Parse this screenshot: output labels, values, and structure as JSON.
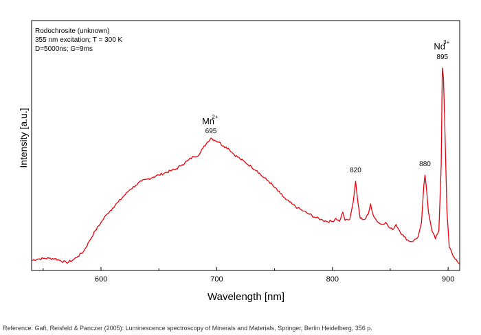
{
  "chart_data": {
    "type": "line",
    "title": "",
    "xlabel": "Wavelength [nm]",
    "ylabel": "Intensity [a.u.]",
    "xlim": [
      540,
      910
    ],
    "ylim": [
      0,
      100
    ],
    "x_ticks": [
      600,
      700,
      800,
      900
    ],
    "y_ticks_shown": false,
    "grid": false,
    "line_color": "#e8000a",
    "info_box": {
      "line1": "Rodochrosite (unknown)",
      "line2": "355 nm excitation; T = 300 K",
      "line3": "D=5000ns; G=9ms"
    },
    "ion_labels": [
      {
        "ion": "Mn",
        "charge": "2+",
        "x": 695
      },
      {
        "ion": "Nd",
        "charge": "3+",
        "x": 895
      }
    ],
    "peak_labels": [
      {
        "text": "695",
        "x": 695,
        "y": 62
      },
      {
        "text": "820",
        "x": 820,
        "y": 43
      },
      {
        "text": "880",
        "x": 880,
        "y": 46
      },
      {
        "text": "895",
        "x": 895,
        "y": 98
      }
    ],
    "series": [
      {
        "points": [
          [
            540,
            1.5
          ],
          [
            545,
            2.2
          ],
          [
            550,
            2.5
          ],
          [
            555,
            2.6
          ],
          [
            560,
            2.4
          ],
          [
            565,
            1.5
          ],
          [
            570,
            0.5
          ],
          [
            575,
            1.5
          ],
          [
            580,
            3.5
          ],
          [
            585,
            6
          ],
          [
            590,
            11
          ],
          [
            595,
            16
          ],
          [
            600,
            20
          ],
          [
            605,
            24
          ],
          [
            610,
            27
          ],
          [
            615,
            30
          ],
          [
            620,
            33
          ],
          [
            625,
            36
          ],
          [
            630,
            38
          ],
          [
            635,
            40
          ],
          [
            640,
            41
          ],
          [
            645,
            42
          ],
          [
            650,
            43
          ],
          [
            655,
            44
          ],
          [
            660,
            45
          ],
          [
            665,
            46
          ],
          [
            670,
            48
          ],
          [
            675,
            50
          ],
          [
            680,
            52
          ],
          [
            685,
            53
          ],
          [
            688,
            56
          ],
          [
            692,
            59
          ],
          [
            695,
            61
          ],
          [
            698,
            60
          ],
          [
            702,
            59
          ],
          [
            706,
            57
          ],
          [
            710,
            56
          ],
          [
            715,
            53
          ],
          [
            720,
            51
          ],
          [
            725,
            49
          ],
          [
            730,
            47
          ],
          [
            735,
            45
          ],
          [
            740,
            42
          ],
          [
            745,
            40
          ],
          [
            750,
            37
          ],
          [
            755,
            34
          ],
          [
            760,
            31
          ],
          [
            765,
            29
          ],
          [
            770,
            27
          ],
          [
            775,
            25.5
          ],
          [
            780,
            24
          ],
          [
            785,
            22.5
          ],
          [
            790,
            21.5
          ],
          [
            795,
            20.5
          ],
          [
            800,
            20.5
          ],
          [
            803,
            22
          ],
          [
            806,
            20.5
          ],
          [
            809,
            25
          ],
          [
            811,
            21
          ],
          [
            815,
            21.5
          ],
          [
            818,
            30
          ],
          [
            820,
            40
          ],
          [
            822,
            30
          ],
          [
            824,
            22
          ],
          [
            828,
            21.5
          ],
          [
            831,
            24
          ],
          [
            833,
            29
          ],
          [
            835,
            24
          ],
          [
            838,
            21
          ],
          [
            842,
            19
          ],
          [
            846,
            20
          ],
          [
            849,
            17.5
          ],
          [
            852,
            16.5
          ],
          [
            855,
            19
          ],
          [
            858,
            16
          ],
          [
            862,
            13
          ],
          [
            866,
            11
          ],
          [
            870,
            11
          ],
          [
            874,
            13
          ],
          [
            877,
            20
          ],
          [
            879,
            38
          ],
          [
            880,
            43
          ],
          [
            881,
            38
          ],
          [
            883,
            25
          ],
          [
            886,
            16
          ],
          [
            889,
            12
          ],
          [
            892,
            16
          ],
          [
            894,
            48
          ],
          [
            895,
            95
          ],
          [
            896,
            90
          ],
          [
            897,
            70
          ],
          [
            899,
            25
          ],
          [
            901,
            8
          ],
          [
            904,
            4
          ],
          [
            907,
            2
          ],
          [
            910,
            0
          ]
        ]
      }
    ]
  },
  "reference": "Reference: Gaft, Reisfeld & Panczer (2005): Luminescence spectroscopy of Minerals and Materials, Springer, Berlin Heidelberg, 356 p."
}
